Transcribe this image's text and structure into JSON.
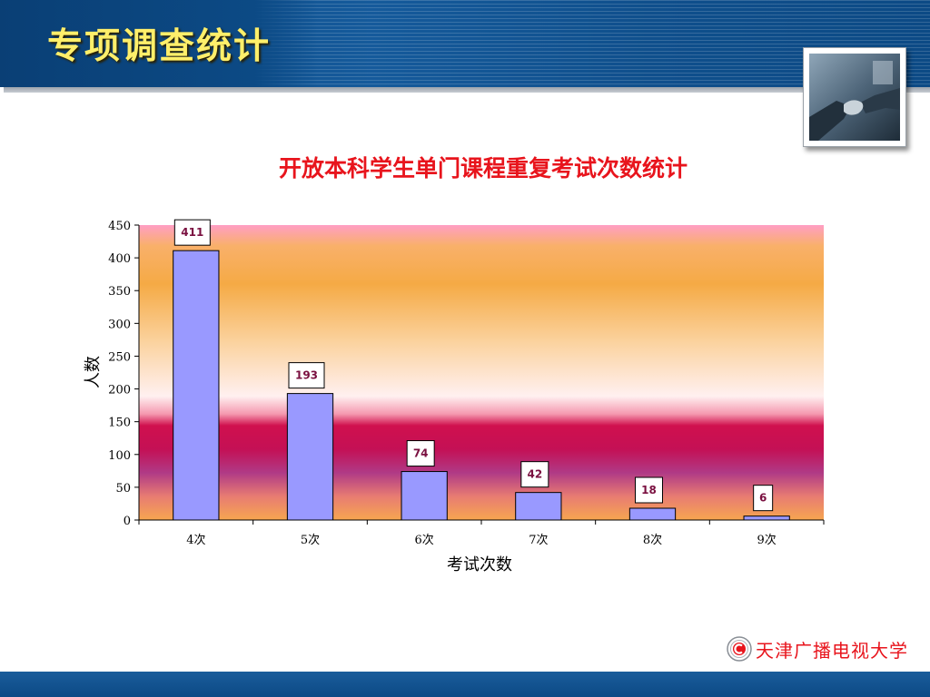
{
  "slide": {
    "title": "专项调查统计",
    "org_logo_text": "天津广播电视大学"
  },
  "colors": {
    "bar_fill": "#9999ff",
    "title_red": "#e8141c",
    "heading_yellow": "#ffef6a",
    "header_blue": "#0f4f8c"
  },
  "chart_data": {
    "type": "bar",
    "title": "开放本科学生单门课程重复考试次数统计",
    "xlabel": "考试次数",
    "ylabel": "人数",
    "categories": [
      "4次",
      "5次",
      "6次",
      "7次",
      "8次",
      "9次"
    ],
    "values": [
      411,
      193,
      74,
      42,
      18,
      6
    ],
    "data_labels": [
      "411",
      "193",
      "74",
      "42",
      "18",
      "6"
    ],
    "ylim": [
      0,
      450
    ],
    "yticks": [
      0,
      50,
      100,
      150,
      200,
      250,
      300,
      350,
      400,
      450
    ],
    "grid": false,
    "legend": "none"
  }
}
